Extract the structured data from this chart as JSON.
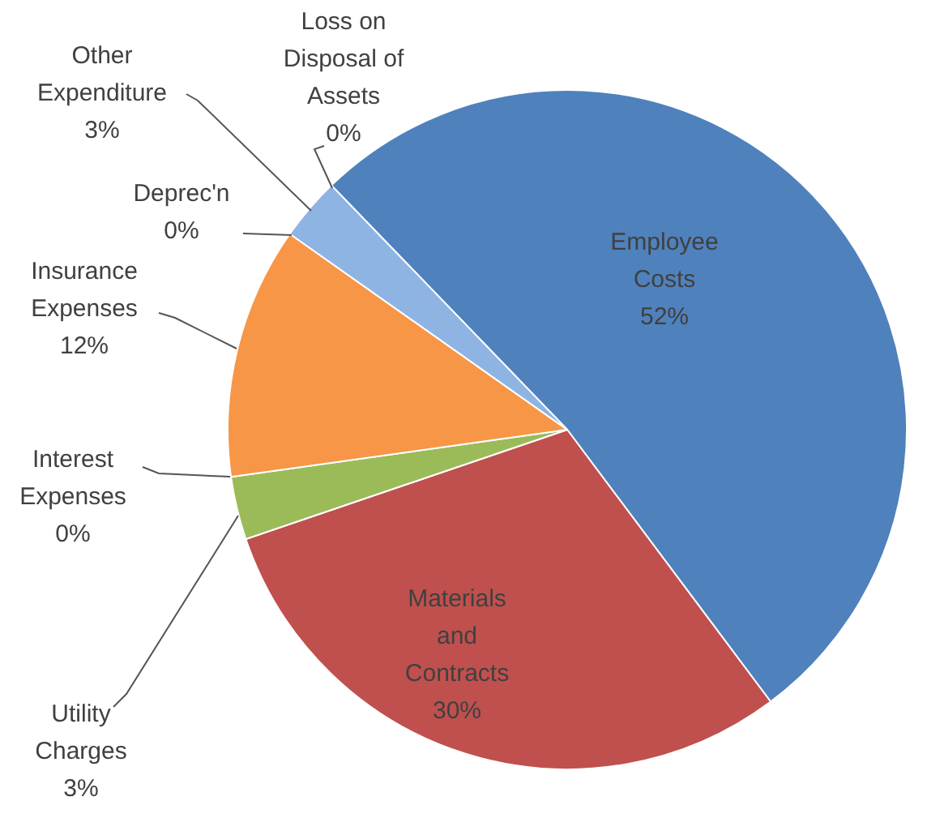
{
  "chart_data": {
    "type": "pie",
    "categories": [
      "Employee Costs",
      "Materials and Contracts",
      "Utility Charges",
      "Interest Expenses",
      "Insurance Expenses",
      "Deprec'n",
      "Other Expenditure",
      "Loss on Disposal of Assets"
    ],
    "values": [
      52,
      30,
      3,
      0,
      12,
      0,
      3,
      0
    ],
    "value_labels": [
      "52%",
      "30%",
      "3%",
      "0%",
      "12%",
      "0%",
      "3%",
      "0%"
    ],
    "colors": [
      "#4f81bd",
      "#c0504d",
      "#9bbb59",
      "#4bacc6",
      "#f79646",
      "#2c4d75",
      "#8eb4e3",
      "#7f7f7f"
    ]
  }
}
